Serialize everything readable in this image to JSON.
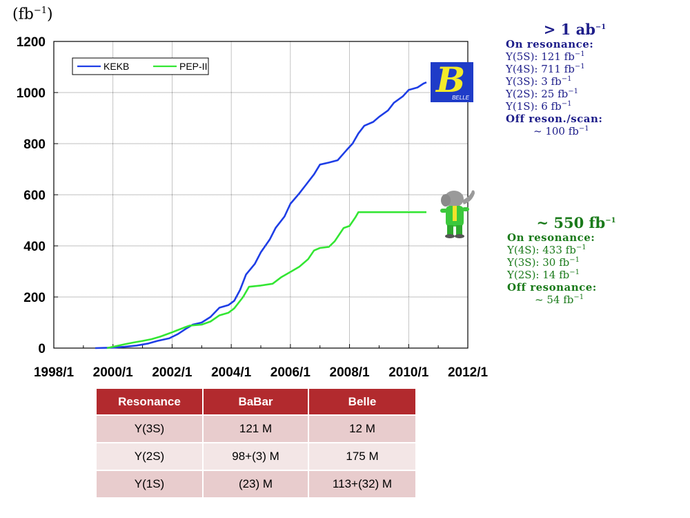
{
  "chart_data": {
    "type": "line",
    "x_tick_labels": [
      "1998/1",
      "2000/1",
      "2002/1",
      "2004/1",
      "2006/1",
      "2008/1",
      "2010/1",
      "2012/1"
    ],
    "xlim": [
      1998.0,
      2012.0
    ],
    "ylim": [
      0,
      1200
    ],
    "y_ticks": [
      0,
      200,
      400,
      600,
      800,
      1000,
      1200
    ],
    "grid": true,
    "legend_position": "top-left",
    "series": [
      {
        "name": "KEKB",
        "color": "#1e3ee6",
        "points": [
          [
            1999.4,
            0
          ],
          [
            2000.0,
            2
          ],
          [
            2000.4,
            5
          ],
          [
            2000.8,
            10
          ],
          [
            2001.2,
            18
          ],
          [
            2001.5,
            28
          ],
          [
            2001.9,
            38
          ],
          [
            2002.2,
            55
          ],
          [
            2002.5,
            78
          ],
          [
            2002.7,
            92
          ],
          [
            2003.0,
            100
          ],
          [
            2003.3,
            122
          ],
          [
            2003.6,
            158
          ],
          [
            2003.9,
            168
          ],
          [
            2004.1,
            185
          ],
          [
            2004.3,
            228
          ],
          [
            2004.5,
            288
          ],
          [
            2004.8,
            330
          ],
          [
            2005.0,
            375
          ],
          [
            2005.3,
            425
          ],
          [
            2005.5,
            470
          ],
          [
            2005.8,
            515
          ],
          [
            2006.0,
            565
          ],
          [
            2006.3,
            605
          ],
          [
            2006.5,
            635
          ],
          [
            2006.8,
            680
          ],
          [
            2007.0,
            718
          ],
          [
            2007.3,
            726
          ],
          [
            2007.6,
            735
          ],
          [
            2007.9,
            775
          ],
          [
            2008.1,
            800
          ],
          [
            2008.3,
            840
          ],
          [
            2008.5,
            870
          ],
          [
            2008.8,
            885
          ],
          [
            2009.0,
            905
          ],
          [
            2009.3,
            930
          ],
          [
            2009.5,
            960
          ],
          [
            2009.8,
            985
          ],
          [
            2010.0,
            1010
          ],
          [
            2010.3,
            1020
          ],
          [
            2010.5,
            1035
          ],
          [
            2010.6,
            1040
          ]
        ]
      },
      {
        "name": "PEP-II",
        "color": "#33e633",
        "points": [
          [
            1999.8,
            0
          ],
          [
            2000.0,
            5
          ],
          [
            2000.4,
            15
          ],
          [
            2000.7,
            22
          ],
          [
            2001.0,
            28
          ],
          [
            2001.3,
            35
          ],
          [
            2001.6,
            45
          ],
          [
            2002.0,
            62
          ],
          [
            2002.4,
            80
          ],
          [
            2002.6,
            88
          ],
          [
            2003.0,
            92
          ],
          [
            2003.3,
            104
          ],
          [
            2003.6,
            128
          ],
          [
            2003.9,
            138
          ],
          [
            2004.1,
            155
          ],
          [
            2004.4,
            200
          ],
          [
            2004.6,
            240
          ],
          [
            2005.0,
            245
          ],
          [
            2005.4,
            252
          ],
          [
            2005.7,
            278
          ],
          [
            2006.0,
            298
          ],
          [
            2006.3,
            318
          ],
          [
            2006.6,
            348
          ],
          [
            2006.8,
            382
          ],
          [
            2007.0,
            392
          ],
          [
            2007.3,
            396
          ],
          [
            2007.5,
            418
          ],
          [
            2007.8,
            470
          ],
          [
            2008.0,
            478
          ],
          [
            2008.2,
            512
          ],
          [
            2008.3,
            532
          ],
          [
            2010.6,
            532
          ]
        ]
      }
    ]
  },
  "y_unit_label": "(fb",
  "y_unit_sup": "−1",
  "belle_logo_letter": "B",
  "belle_logo_text": "BELLE",
  "belle_panel": {
    "title": "> 1 ab",
    "title_sup": "−1",
    "on_res_label": "On resonance:",
    "rows": [
      {
        "label": "Υ(5S): 121 fb",
        "sup": "−1"
      },
      {
        "label": "Υ(4S): 711 fb",
        "sup": "−1"
      },
      {
        "label": "Υ(3S): 3 fb",
        "sup": "−1"
      },
      {
        "label": "Υ(2S): 25 fb",
        "sup": "−1"
      },
      {
        "label": "Υ(1S): 6 fb",
        "sup": "−1"
      }
    ],
    "off_label": "Off reson./scan:",
    "off_value": "~ 100 fb",
    "off_sup": "−1"
  },
  "babar_panel": {
    "title": "~ 550 fb",
    "title_sup": "−1",
    "on_res_label": "On resonance:",
    "rows": [
      {
        "label": "Υ(4S): 433 fb",
        "sup": "−1"
      },
      {
        "label": "Υ(3S): 30 fb",
        "sup": "−1"
      },
      {
        "label": "Υ(2S): 14 fb",
        "sup": "−1"
      }
    ],
    "off_label": "Off resonance:",
    "off_value": "~ 54 fb",
    "off_sup": "−1"
  },
  "table": {
    "headers": [
      "Resonance",
      "BaBar",
      "Belle"
    ],
    "rows": [
      [
        "Υ(3S)",
        "121 M",
        "12 M"
      ],
      [
        "Υ(2S)",
        "98+(3) M",
        "175 M"
      ],
      [
        "Υ(1S)",
        "(23) M",
        "113+(32) M"
      ]
    ]
  }
}
